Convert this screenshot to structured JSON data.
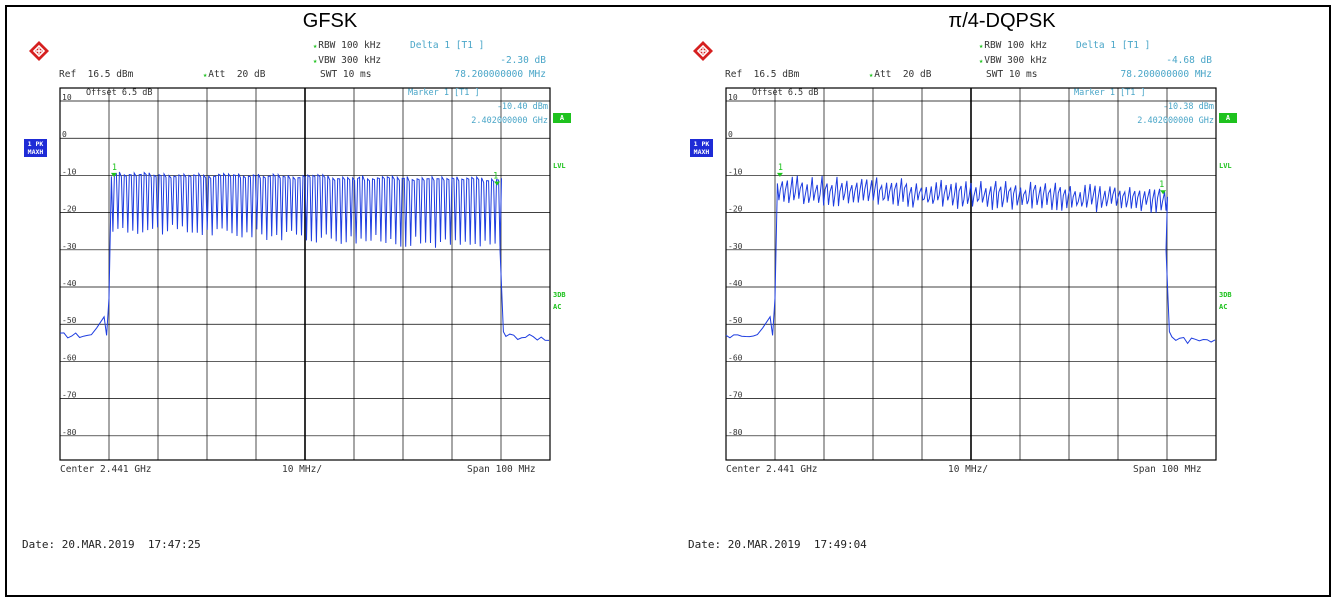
{
  "chart_data": [
    {
      "type": "line",
      "title": "GFSK",
      "ylim": [
        -86.5,
        13.5
      ],
      "xlim": [
        2.391,
        2.491
      ],
      "x_unit": "GHz",
      "y_ticks": [
        "10",
        "0",
        "-10",
        "-20",
        "-30",
        "-40",
        "-50",
        "-60",
        "-70",
        "-80"
      ],
      "header": {
        "rbw": "RBW 100 kHz",
        "vbw": "VBW 300 kHz",
        "swt": "SWT 10 ms",
        "ref": "Ref  16.5 dBm",
        "att": "Att  20 dB",
        "delta": "Delta 1 [T1 ]",
        "delta_db": "-2.30 dB",
        "delta_freq": "78.200000000 MHz",
        "offset": "Offset  6.5 dB",
        "marker": "Marker 1 [T1 ]",
        "marker_dbm": "-10.40 dBm",
        "marker_freq": "2.402000000 GHz"
      },
      "badge": "1 PK\nMAXH",
      "a_box": "A",
      "side_labels": [
        "LVL",
        "3DB",
        "AC"
      ],
      "marker_label": "1",
      "footer": {
        "center": "Center 2.441 GHz",
        "div": "10 MHz/",
        "span": "Span 100 MHz"
      },
      "date": "Date: 20.MAR.2019  17:47:25",
      "trace": {
        "floor_left": -53,
        "floor_right": -53,
        "band_start": 2.4015,
        "band_end": 2.4805,
        "top": -10,
        "valley_start": -24,
        "valley_end": -29,
        "spiky": true
      }
    },
    {
      "type": "line",
      "title": "π/4-DQPSK",
      "ylim": [
        -86.5,
        13.5
      ],
      "xlim": [
        2.391,
        2.491
      ],
      "x_unit": "GHz",
      "y_ticks": [
        "10",
        "0",
        "-10",
        "-20",
        "-30",
        "-40",
        "-50",
        "-60",
        "-70",
        "-80"
      ],
      "header": {
        "rbw": "RBW 100 kHz",
        "vbw": "VBW 300 kHz",
        "swt": "SWT 10 ms",
        "ref": "Ref  16.5 dBm",
        "att": "Att  20 dB",
        "delta": "Delta 1 [T1 ]",
        "delta_db": "-4.68 dB",
        "delta_freq": "78.200000000 MHz",
        "offset": "Offset  6.5 dB",
        "marker": "Marker 1 [T1 ]",
        "marker_dbm": "-10.38 dBm",
        "marker_freq": "2.402000000 GHz"
      },
      "badge": "1 PK\nMAXH",
      "a_box": "A",
      "side_labels": [
        "LVL",
        "3DB",
        "AC"
      ],
      "marker_label": "1",
      "footer": {
        "center": "Center 2.441 GHz",
        "div": "10 MHz/",
        "span": "Span 100 MHz"
      },
      "date": "Date: 20.MAR.2019  17:49:04",
      "trace": {
        "floor_left": -53,
        "floor_right": -54,
        "band_start": 2.4015,
        "band_end": 2.4805,
        "top": -11,
        "valley_start": -17,
        "valley_end": -19,
        "spiky": false
      }
    }
  ]
}
